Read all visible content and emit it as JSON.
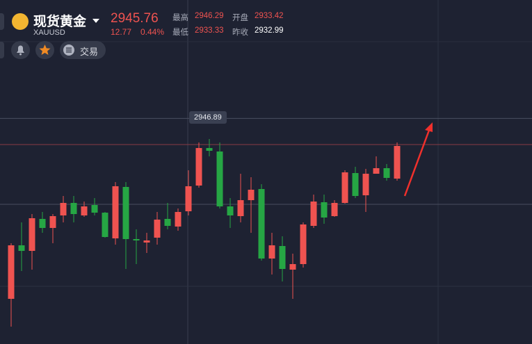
{
  "header": {
    "name": "现货黄金",
    "symbol": "XAUUSD",
    "price": "2945.76",
    "change": "12.77",
    "change_pct": "0.44%",
    "stats": [
      {
        "label": "最高",
        "value": "2946.29"
      },
      {
        "label": "开盘",
        "value": "2933.42"
      },
      {
        "label": "最低",
        "value": "2933.33"
      },
      {
        "label": "昨收",
        "value": "2932.99"
      }
    ]
  },
  "toolbar": {
    "trade": "交易"
  },
  "chart_data": {
    "type": "candlestick",
    "ylim": [
      2937.15,
      2952
    ],
    "up_color": "#ef5350",
    "down_color": "#26a644",
    "open": [
      2939.1,
      2941.41,
      2941.17,
      2942.55,
      2942.16,
      2942.7,
      2943.24,
      2942.7,
      2943.15,
      2942.82,
      2941.71,
      2943.93,
      2941.68,
      2941.53,
      2941.74,
      2942.55,
      2942.22,
      2942.88,
      2943.99,
      2945.61,
      2945.46,
      2943.09,
      2942.67,
      2943.36,
      2943.84,
      2940.84,
      2941.38,
      2940.36,
      2940.6,
      2942.25,
      2943.27,
      2942.67,
      2943.24,
      2944.53,
      2943.57,
      2944.5,
      2944.74,
      2944.29
    ],
    "high": [
      2941.5,
      2942.4,
      2942.76,
      2942.85,
      2942.76,
      2943.54,
      2943.54,
      2943.3,
      2943.45,
      2942.85,
      2944.14,
      2944.14,
      2942.1,
      2941.95,
      2942.85,
      2943.24,
      2943.0,
      2944.65,
      2945.85,
      2946.0,
      2945.85,
      2943.45,
      2944.5,
      2944.35,
      2944.05,
      2941.95,
      2941.8,
      2941.05,
      2942.4,
      2943.6,
      2943.6,
      2943.36,
      2944.65,
      2944.8,
      2944.71,
      2945.25,
      2944.92,
      2945.85
    ],
    "low": [
      2937.9,
      2940.3,
      2940.36,
      2941.95,
      2941.5,
      2942.4,
      2942.4,
      2942.64,
      2942.7,
      2941.74,
      2941.44,
      2940.39,
      2940.6,
      2941.08,
      2941.44,
      2942.1,
      2942.04,
      2942.7,
      2943.9,
      2945.25,
      2943.0,
      2942.16,
      2942.4,
      2941.95,
      2940.75,
      2940.15,
      2939.85,
      2939.1,
      2940.45,
      2942.16,
      2942.34,
      2942.64,
      2943.21,
      2943.45,
      2942.85,
      2944.5,
      2944.2,
      2944.2
    ],
    "close": [
      2941.41,
      2941.17,
      2942.58,
      2942.16,
      2942.67,
      2943.24,
      2942.76,
      2943.09,
      2942.82,
      2941.77,
      2943.96,
      2941.68,
      2941.62,
      2941.62,
      2942.52,
      2942.25,
      2942.85,
      2943.96,
      2945.61,
      2945.49,
      2943.09,
      2942.7,
      2943.36,
      2943.81,
      2940.84,
      2941.41,
      2940.39,
      2940.6,
      2942.31,
      2943.3,
      2942.61,
      2943.24,
      2944.56,
      2943.54,
      2944.5,
      2944.74,
      2944.32,
      2945.7
    ],
    "last_price": 2945.76,
    "crosshair": 2946.89
  }
}
